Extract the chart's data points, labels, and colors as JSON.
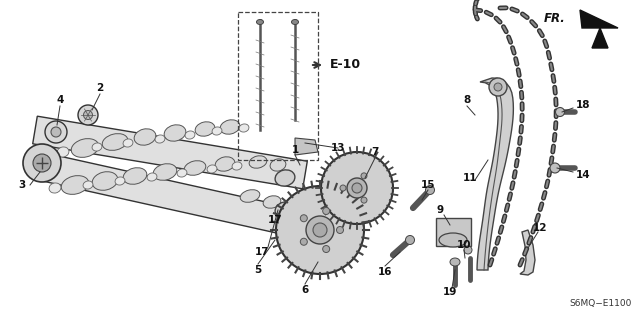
{
  "bg_color": "#ffffff",
  "diagram_code": "S6MQ−E1100",
  "fr_label": "FR.",
  "e10_label": "E-10",
  "line_color": "#2a2a2a",
  "gray_fill": "#c8c8c8",
  "dark_gray": "#888888",
  "mid_gray": "#aaaaaa"
}
